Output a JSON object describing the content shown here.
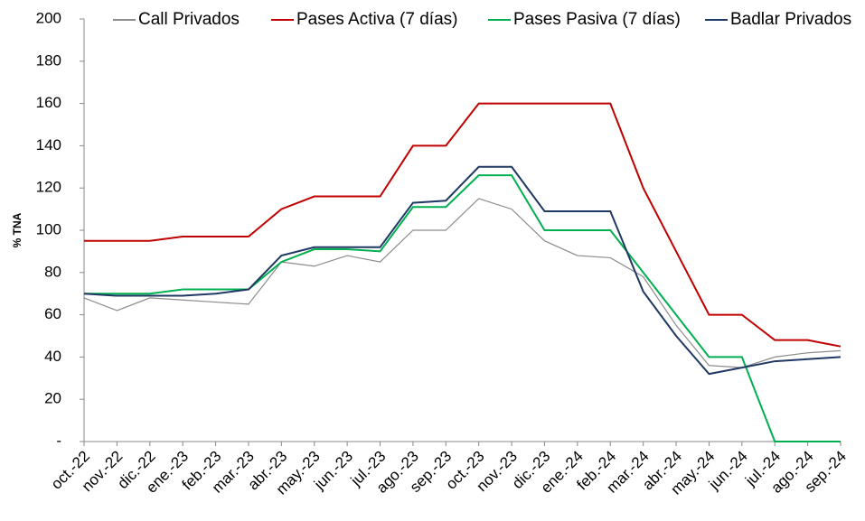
{
  "chart_data": {
    "type": "line",
    "y_label": "% TNA",
    "categories": [
      "oct.-22",
      "nov.-22",
      "dic.-22",
      "ene.-23",
      "feb.-23",
      "mar.-23",
      "abr.-23",
      "may.-23",
      "jun.-23",
      "jul.-23",
      "ago.-23",
      "sep.-23",
      "oct.-23",
      "nov.-23",
      "dic.-23",
      "ene.-24",
      "feb.-24",
      "mar.-24",
      "abr.-24",
      "may.-24",
      "jun.-24",
      "jul.-24",
      "ago.-24",
      "sep.-24"
    ],
    "series": [
      {
        "name": "Call Privados",
        "color": "#8c8c8c",
        "values": [
          68,
          62,
          68,
          67,
          66,
          65,
          85,
          83,
          88,
          85,
          100,
          100,
          115,
          110,
          95,
          88,
          87,
          78,
          55,
          36,
          35,
          40,
          42,
          43
        ]
      },
      {
        "name": "Pases Activa (7 días)",
        "color": "#c00000",
        "values": [
          95,
          95,
          95,
          97,
          97,
          97,
          110,
          116,
          116,
          116,
          140,
          140,
          160,
          160,
          160,
          160,
          160,
          120,
          90,
          60,
          60,
          48,
          48,
          45
        ]
      },
      {
        "name": "Pases Pasiva (7 días)",
        "color": "#00b050",
        "values": [
          70,
          70,
          70,
          72,
          72,
          72,
          85,
          91,
          91,
          90,
          111,
          111,
          126,
          126,
          100,
          100,
          100,
          80,
          60,
          40,
          40,
          0,
          0,
          0
        ]
      },
      {
        "name": "Badlar Privados",
        "color": "#1f3864",
        "values": [
          70,
          69,
          69,
          69,
          70,
          72,
          88,
          92,
          92,
          92,
          113,
          114,
          130,
          130,
          109,
          109,
          109,
          71,
          50,
          32,
          35,
          38,
          39,
          40
        ]
      }
    ],
    "ylim": [
      0,
      200
    ],
    "yticks": [
      {
        "value": 0,
        "label": "-"
      },
      20,
      40,
      60,
      80,
      100,
      120,
      140,
      160,
      180,
      200
    ]
  }
}
